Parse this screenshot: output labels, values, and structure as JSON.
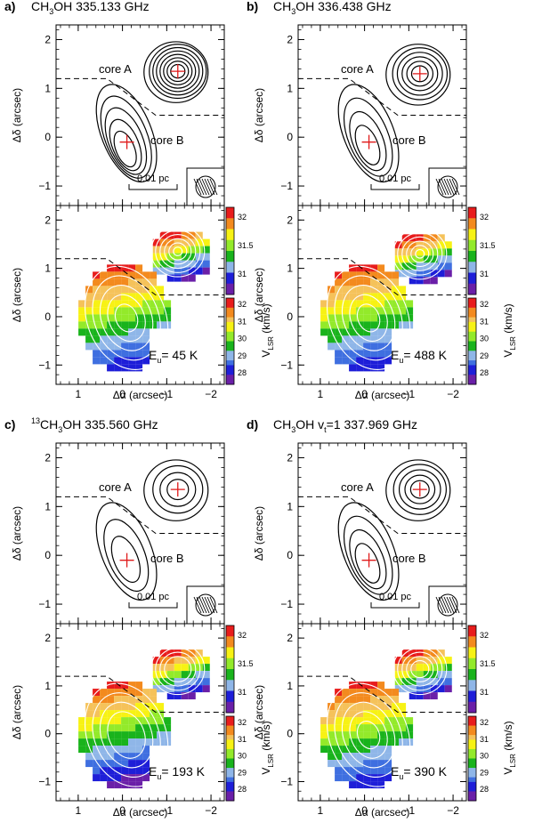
{
  "colors": {
    "velocity_scale": [
      "#6a1fa8",
      "#1e1ed8",
      "#3f6fe0",
      "#8fb6e8",
      "#19b31c",
      "#93ea2a",
      "#f7f214",
      "#f5c25a",
      "#f38a1e",
      "#e81c1c"
    ],
    "continuum_cross": "#e01a1a",
    "ring_white": "#ffffff"
  },
  "shared": {
    "xlabel": "Δα (arcsec)",
    "ylabel": "Δδ (arcsec)",
    "xticks": [
      "1",
      "0",
      "−1",
      "−2"
    ],
    "yticks": [
      "2",
      "1",
      "0",
      "−1"
    ],
    "core_a_label": "core A",
    "core_b_label": "core B",
    "scalebar_label": "0.01 pc",
    "colorbar_label": "V",
    "colorbar_label_sub": "LSR",
    "colorbar_label_units": "(km/s)",
    "colorbar_coreA_ticks": [
      "32",
      "31.5",
      "31"
    ],
    "colorbar_coreB_ticks_full": [
      "32",
      "31",
      "30",
      "29",
      "28"
    ],
    "colorbar_coreB_ticks_short": [
      "32",
      "31",
      "30",
      "29",
      "28"
    ]
  },
  "chart_data": [
    {
      "type": "contour+velocity-map",
      "panel": "a)",
      "title_pre": "CH",
      "title_sub": "3",
      "title_post": "OH  335.133 GHz",
      "eu_label": "E",
      "eu_sub": "u",
      "eu_value": "=  45 K",
      "xlim": [
        1.5,
        -2.3
      ],
      "ylim": [
        -1.4,
        2.3
      ],
      "core_a_center": [
        -1.25,
        1.35
      ],
      "core_b_center": [
        -0.05,
        -0.1
      ],
      "core_a_levels": 8,
      "core_b_levels": 5,
      "velocity_range_coreA": [
        30.8,
        32.3
      ],
      "velocity_range_coreB": [
        27.8,
        32.4
      ]
    },
    {
      "type": "contour+velocity-map",
      "panel": "b)",
      "title_pre": "CH",
      "title_sub": "3",
      "title_post": "OH  336.438 GHz",
      "eu_label": "E",
      "eu_sub": "u",
      "eu_value": "=  488 K",
      "xlim": [
        1.5,
        -2.3
      ],
      "ylim": [
        -1.4,
        2.3
      ],
      "core_a_center": [
        -1.25,
        1.3
      ],
      "core_b_center": [
        -0.05,
        -0.1
      ],
      "core_a_levels": 6,
      "core_b_levels": 4,
      "velocity_range_coreA": [
        30.8,
        32.3
      ],
      "velocity_range_coreB": [
        27.8,
        32.4
      ]
    },
    {
      "type": "contour+velocity-map",
      "panel": "c)",
      "title_pre": "",
      "title_sup": "13",
      "title_mid": "CH",
      "title_sub": "3",
      "title_post": "OH  335.560 GHz",
      "eu_label": "E",
      "eu_sub": "u",
      "eu_value": "=  193 K",
      "xlim": [
        1.5,
        -2.3
      ],
      "ylim": [
        -1.4,
        2.3
      ],
      "core_a_center": [
        -1.25,
        1.35
      ],
      "core_b_center": [
        -0.05,
        -0.1
      ],
      "core_a_levels": 4,
      "core_b_levels": 3,
      "velocity_range_coreA": [
        30.8,
        32.3
      ],
      "velocity_range_coreB": [
        28.3,
        32.4
      ]
    },
    {
      "type": "contour+velocity-map",
      "panel": "d)",
      "title_pre": "CH",
      "title_sub": "3",
      "title_post": "OH v",
      "title_vsub": "t",
      "title_tail": "=1  337.969 GHz",
      "eu_label": "E",
      "eu_sub": "u",
      "eu_value": "=  390 K",
      "xlim": [
        1.5,
        -2.3
      ],
      "ylim": [
        -1.4,
        2.3
      ],
      "core_a_center": [
        -1.25,
        1.35
      ],
      "core_b_center": [
        -0.05,
        -0.1
      ],
      "core_a_levels": 5,
      "core_b_levels": 4,
      "velocity_range_coreA": [
        30.8,
        32.3
      ],
      "velocity_range_coreB": [
        27.8,
        32.4
      ]
    }
  ]
}
